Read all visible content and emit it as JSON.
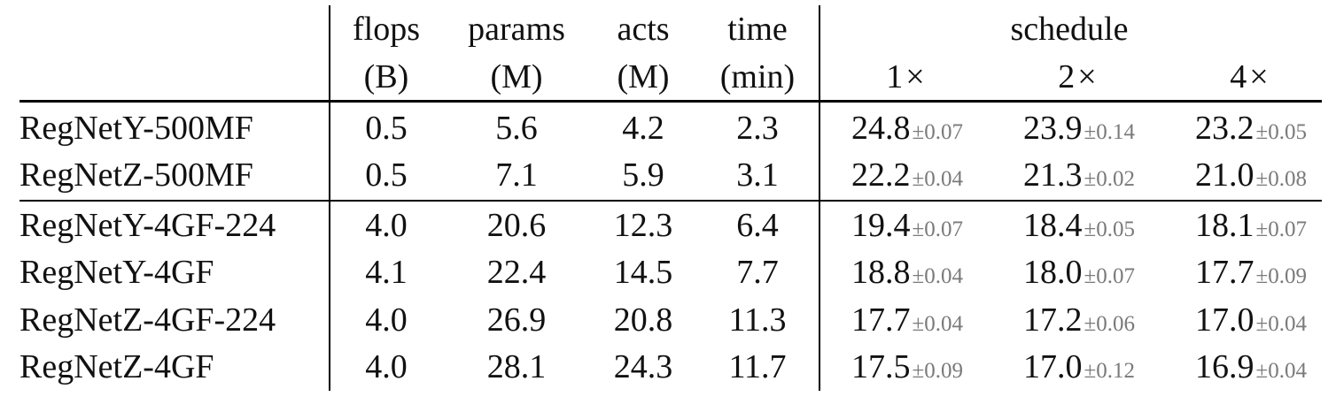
{
  "table": {
    "headers": {
      "flops": {
        "line1": "flops",
        "line2": "(B)"
      },
      "params": {
        "line1": "params",
        "line2": "(M)"
      },
      "acts": {
        "line1": "acts",
        "line2": "(M)"
      },
      "time": {
        "line1": "time",
        "line2": "(min)"
      },
      "schedule": {
        "label": "schedule",
        "s1": "1",
        "s2": "2",
        "s4": "4",
        "times_symbol": "×"
      }
    },
    "pm_symbol": "±",
    "rows": [
      {
        "model": "RegNetY-500MF",
        "flops": "0.5",
        "params": "5.6",
        "acts": "4.2",
        "time": "2.3",
        "s1": {
          "value": "24.8",
          "std": "0.07"
        },
        "s2": {
          "value": "23.9",
          "std": "0.14"
        },
        "s4": {
          "value": "23.2",
          "std": "0.05"
        }
      },
      {
        "model": "RegNetZ-500MF",
        "flops": "0.5",
        "params": "7.1",
        "acts": "5.9",
        "time": "3.1",
        "s1": {
          "value": "22.2",
          "std": "0.04"
        },
        "s2": {
          "value": "21.3",
          "std": "0.02"
        },
        "s4": {
          "value": "21.0",
          "std": "0.08"
        }
      },
      {
        "model": "RegNetY-4GF-224",
        "flops": "4.0",
        "params": "20.6",
        "acts": "12.3",
        "time": "6.4",
        "s1": {
          "value": "19.4",
          "std": "0.07"
        },
        "s2": {
          "value": "18.4",
          "std": "0.05"
        },
        "s4": {
          "value": "18.1",
          "std": "0.07"
        }
      },
      {
        "model": "RegNetY-4GF",
        "flops": "4.1",
        "params": "22.4",
        "acts": "14.5",
        "time": "7.7",
        "s1": {
          "value": "18.8",
          "std": "0.04"
        },
        "s2": {
          "value": "18.0",
          "std": "0.07"
        },
        "s4": {
          "value": "17.7",
          "std": "0.09"
        }
      },
      {
        "model": "RegNetZ-4GF-224",
        "flops": "4.0",
        "params": "26.9",
        "acts": "20.8",
        "time": "11.3",
        "s1": {
          "value": "17.7",
          "std": "0.04"
        },
        "s2": {
          "value": "17.2",
          "std": "0.06"
        },
        "s4": {
          "value": "17.0",
          "std": "0.04"
        }
      },
      {
        "model": "RegNetZ-4GF",
        "flops": "4.0",
        "params": "28.1",
        "acts": "24.3",
        "time": "11.7",
        "s1": {
          "value": "17.5",
          "std": "0.09"
        },
        "s2": {
          "value": "17.0",
          "std": "0.12"
        },
        "s4": {
          "value": "16.9",
          "std": "0.04"
        }
      }
    ]
  }
}
